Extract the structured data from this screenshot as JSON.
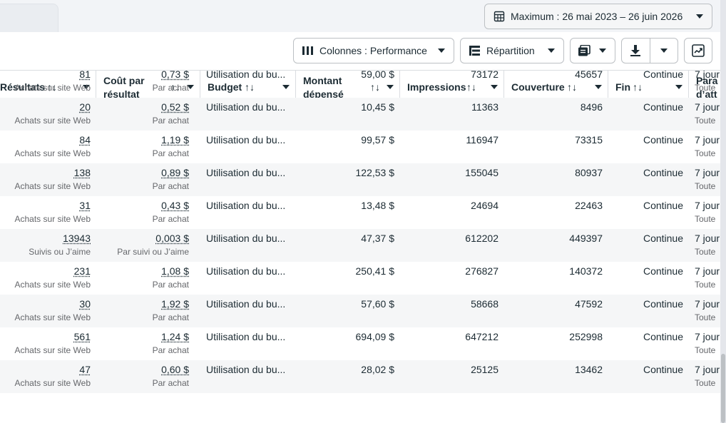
{
  "date_range": {
    "label": "Maximum : 26 mai 2023 – 26 juin 2026",
    "icon": "calendar-icon"
  },
  "toolbar": {
    "columns_label": "Colonnes : Performance",
    "breakdown_label": "Répartition",
    "reports_icon": "reports-icon",
    "export_icon": "download-icon",
    "chart_icon": "chart-icon"
  },
  "table": {
    "headers": {
      "results": "Résultats",
      "cost_line1": "Coût par",
      "cost_line2": "résultat",
      "budget": "Budget",
      "spent_line1": "Montant",
      "spent_line2": "dépensé",
      "impressions": "Impressions",
      "reach": "Couverture",
      "end": "Fin",
      "attr_line1": "Para",
      "attr_line2": "d’att"
    },
    "sort_glyph": "↑↓",
    "rows": [
      {
        "results": "81",
        "results_sub": "Achats sur site Web",
        "cost": "0,73 $",
        "cost_sub": "Par achat",
        "budget": "Utilisation du bu...",
        "spent": "59,00 $",
        "impressions": "73172",
        "reach": "45657",
        "end": "Continue",
        "attr": "7 jour",
        "attr_sub": "Toute"
      },
      {
        "results": "20",
        "results_sub": "Achats sur site Web",
        "cost": "0,52 $",
        "cost_sub": "Par achat",
        "budget": "Utilisation du bu...",
        "spent": "10,45 $",
        "impressions": "11363",
        "reach": "8496",
        "end": "Continue",
        "attr": "7 jour",
        "attr_sub": "Toute"
      },
      {
        "results": "84",
        "results_sub": "Achats sur site Web",
        "cost": "1,19 $",
        "cost_sub": "Par achat",
        "budget": "Utilisation du bu...",
        "spent": "99,57 $",
        "impressions": "116947",
        "reach": "73315",
        "end": "Continue",
        "attr": "7 jour",
        "attr_sub": "Toute"
      },
      {
        "results": "138",
        "results_sub": "Achats sur site Web",
        "cost": "0,89 $",
        "cost_sub": "Par achat",
        "budget": "Utilisation du bu...",
        "spent": "122,53 $",
        "impressions": "155045",
        "reach": "80937",
        "end": "Continue",
        "attr": "7 jour",
        "attr_sub": "Toute"
      },
      {
        "results": "31",
        "results_sub": "Achats sur site Web",
        "cost": "0,43 $",
        "cost_sub": "Par achat",
        "budget": "Utilisation du bu...",
        "spent": "13,48 $",
        "impressions": "24694",
        "reach": "22463",
        "end": "Continue",
        "attr": "7 jour",
        "attr_sub": "Toute"
      },
      {
        "results": "13943",
        "results_sub": "Suivis ou J’aime",
        "cost": "0,003 $",
        "cost_sub": "Par suivi ou J’aime",
        "budget": "Utilisation du bu...",
        "spent": "47,37 $",
        "impressions": "612202",
        "reach": "449397",
        "end": "Continue",
        "attr": "7 jour",
        "attr_sub": "Toute"
      },
      {
        "results": "231",
        "results_sub": "Achats sur site Web",
        "cost": "1,08 $",
        "cost_sub": "Par achat",
        "budget": "Utilisation du bu...",
        "spent": "250,41 $",
        "impressions": "276827",
        "reach": "140372",
        "end": "Continue",
        "attr": "7 jour",
        "attr_sub": "Toute"
      },
      {
        "results": "30",
        "results_sub": "Achats sur site Web",
        "cost": "1,92 $",
        "cost_sub": "Par achat",
        "budget": "Utilisation du bu...",
        "spent": "57,60 $",
        "impressions": "58668",
        "reach": "47592",
        "end": "Continue",
        "attr": "7 jour",
        "attr_sub": "Toute"
      },
      {
        "results": "561",
        "results_sub": "Achats sur site Web",
        "cost": "1,24 $",
        "cost_sub": "Par achat",
        "budget": "Utilisation du bu...",
        "spent": "694,09 $",
        "impressions": "647212",
        "reach": "252998",
        "end": "Continue",
        "attr": "7 jour",
        "attr_sub": "Toute"
      },
      {
        "results": "47",
        "results_sub": "Achats sur site Web",
        "cost": "0,60 $",
        "cost_sub": "Par achat",
        "budget": "Utilisation du bu...",
        "spent": "28,02 $",
        "impressions": "25125",
        "reach": "13462",
        "end": "Continue",
        "attr": "7 jour",
        "attr_sub": "Toute"
      }
    ]
  }
}
